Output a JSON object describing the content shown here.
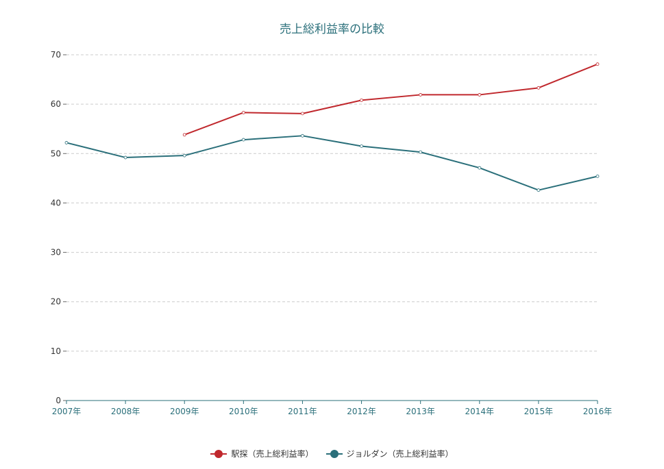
{
  "title": "売上総利益率の比較",
  "colors": {
    "title": "#2a6f7a",
    "axis": "#2a6f7a",
    "grid": "#cccccc",
    "ytick": "#333333"
  },
  "chart_data": {
    "type": "line",
    "title": "売上総利益率の比較",
    "xlabel": "",
    "ylabel": "",
    "categories": [
      "2007年",
      "2008年",
      "2009年",
      "2010年",
      "2011年",
      "2012年",
      "2013年",
      "2014年",
      "2015年",
      "2016年"
    ],
    "ylim": [
      0,
      70
    ],
    "yticks": [
      0,
      10,
      20,
      30,
      40,
      50,
      60,
      70
    ],
    "grid": true,
    "legend_position": "bottom-center",
    "series": [
      {
        "name": "駅探（売上総利益率）",
        "color": "#c0282d",
        "values": [
          null,
          null,
          53.8,
          58.3,
          58.1,
          60.8,
          61.9,
          61.9,
          63.3,
          68.1
        ]
      },
      {
        "name": "ジョルダン（売上総利益率）",
        "color": "#2a6f7a",
        "values": [
          52.2,
          49.2,
          49.6,
          52.8,
          53.6,
          51.5,
          50.3,
          47.1,
          42.6,
          45.4
        ]
      }
    ]
  }
}
